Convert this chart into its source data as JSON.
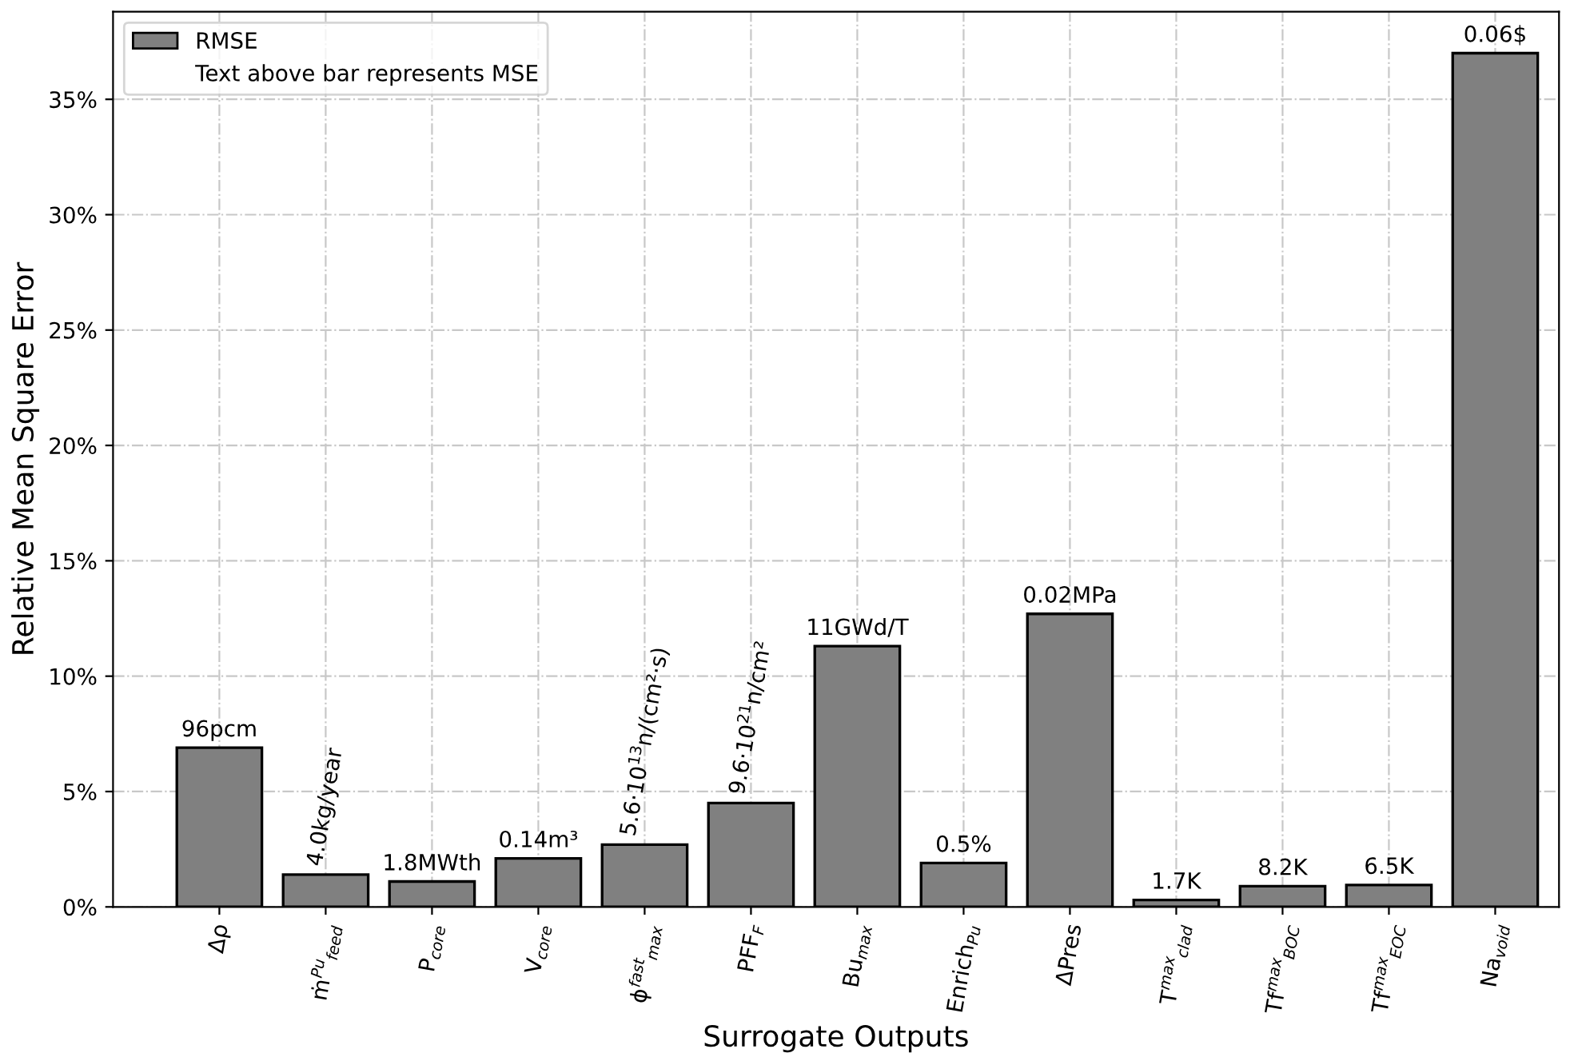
{
  "chart_data": {
    "type": "bar",
    "xlabel": "Surrogate Outputs",
    "ylabel": "Relative Mean Square Error",
    "categories": [
      "Δρ",
      "ṁ$^{Pu}$$_{feed}$",
      "P$_{core}$",
      "V$_{core}$",
      "ϕ$^{fast}$$_{max}$",
      "PFF$_{F}$",
      "Bu$_{max}$",
      "Enrich$_{Pu}$",
      "ΔPres",
      "T$^{max}$$_{clad}$",
      "Tf$^{max}$$_{BOC}$",
      "Tf$^{max}$$_{EOC}$",
      "Na$_{void}$"
    ],
    "series": [
      {
        "name": "RMSE",
        "color": "#808080",
        "values": [
          6.9,
          1.4,
          1.1,
          2.1,
          2.7,
          4.5,
          11.3,
          1.9,
          12.7,
          0.3,
          0.9,
          0.95,
          37.0
        ]
      }
    ],
    "annotations": [
      "Text above bar represents MSE",
      {
        "text": "96pcm",
        "x": "Δρ",
        "y": 6.9
      },
      {
        "text": "4.0kg/year",
        "x": "ṁ$^{Pu}$$_{feed}$",
        "y": 1.4
      },
      {
        "text": "1.8MWth",
        "x": "P$_{core}$",
        "y": 1.1
      },
      {
        "text": "0.14m³",
        "x": "V$_{core}$",
        "y": 2.1
      },
      {
        "text": "5.6·10$^{13}$n/(cm²·s)",
        "x": "ϕ$^{fast}$$_{max}$",
        "y": 2.7
      },
      {
        "text": "9.6·10$^{21}$n/cm²",
        "x": "PFF$_{F}$",
        "y": 4.5
      },
      {
        "text": "11GWd/T",
        "x": "Bu$_{max}$",
        "y": 11.3
      },
      {
        "text": "0.5%",
        "x": "Enrich$_{Pu}$",
        "y": 1.9
      },
      {
        "text": "0.02MPa",
        "x": "ΔPres",
        "y": 12.7
      },
      {
        "text": "1.7K",
        "x": "T$^{max}$$_{clad}$",
        "y": 0.3
      },
      {
        "text": "8.2K",
        "x": "Tf$^{max}$$_{BOC}$",
        "y": 0.9
      },
      {
        "text": "6.5K",
        "x": "Tf$^{max}$$_{EOC}$",
        "y": 0.95
      },
      {
        "text": "0.06$",
        "x": "Na$_{void}$",
        "y": 37.0
      }
    ],
    "ylim": [
      0,
      38.8
    ],
    "yticks": [
      {
        "value": 0,
        "label": "0%"
      },
      {
        "value": 5,
        "label": "5%"
      },
      {
        "value": 10,
        "label": "10%"
      },
      {
        "value": 15,
        "label": "15%"
      },
      {
        "value": 20,
        "label": "20%"
      },
      {
        "value": 25,
        "label": "25%"
      },
      {
        "value": 30,
        "label": "30%"
      },
      {
        "value": 35,
        "label": "35%"
      }
    ],
    "grid": true,
    "legend": "top left"
  }
}
